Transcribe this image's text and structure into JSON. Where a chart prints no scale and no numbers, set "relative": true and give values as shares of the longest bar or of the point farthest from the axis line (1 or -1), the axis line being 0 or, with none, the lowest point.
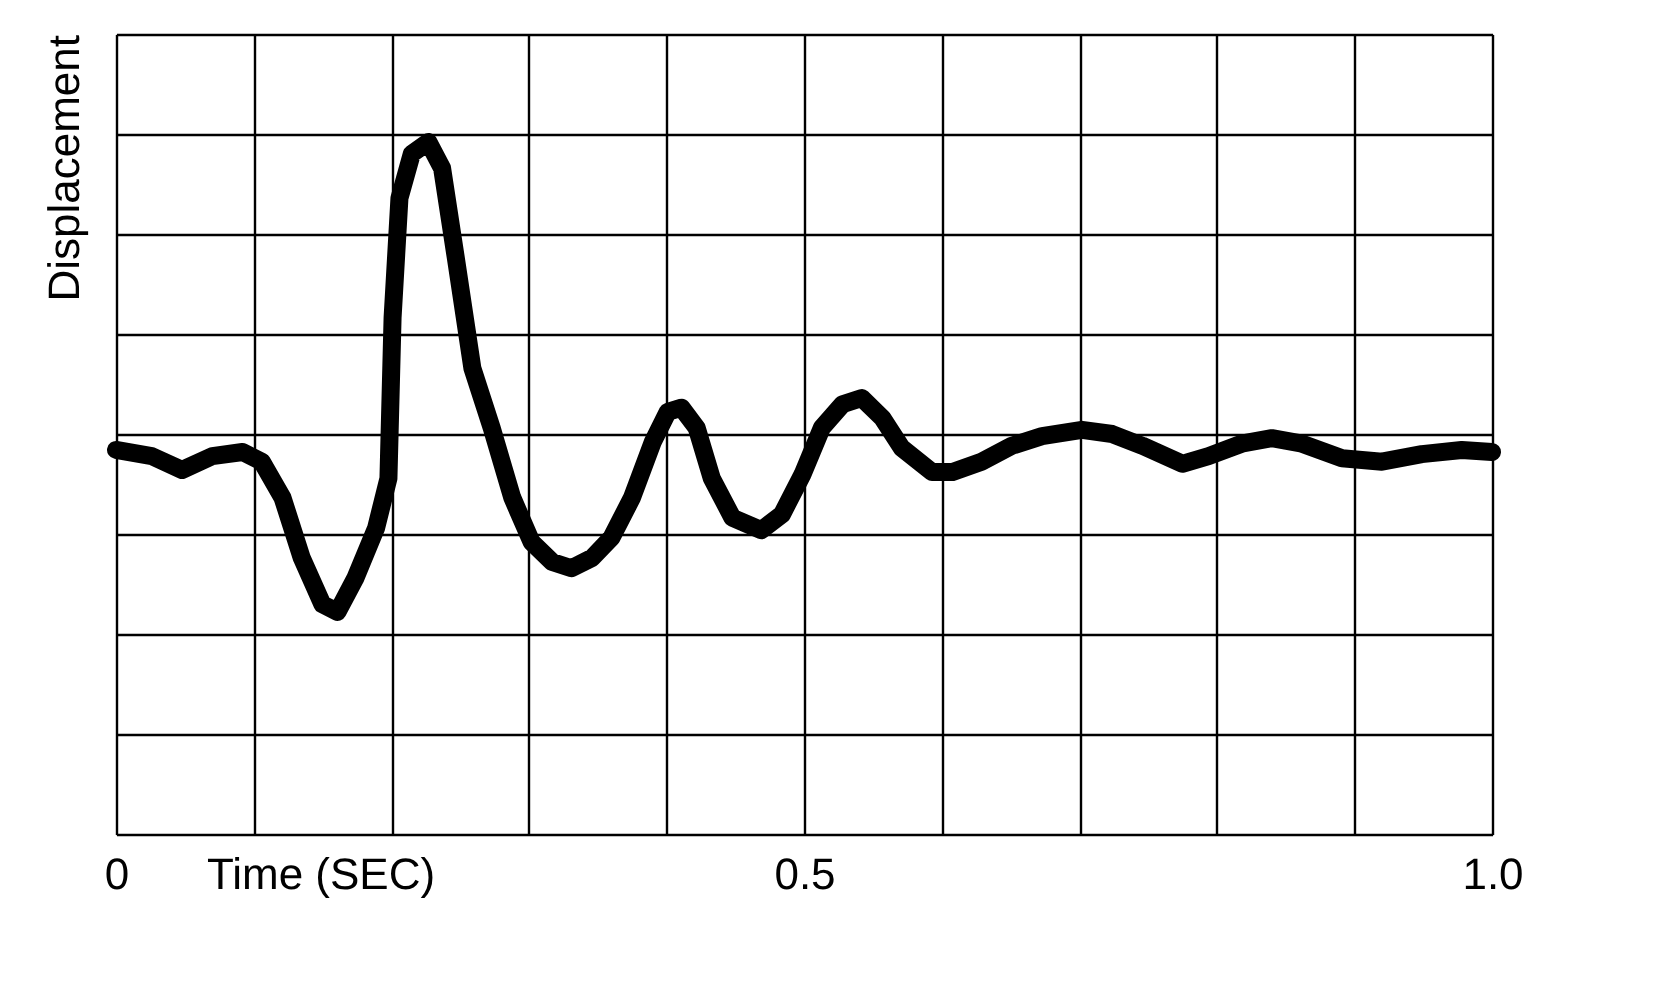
{
  "chart_data": {
    "type": "line",
    "xlabel": "Time (SEC)",
    "ylabel": "Displacement",
    "relative": true,
    "grid": true,
    "line_style": "solid",
    "xlim": [
      0,
      1.0
    ],
    "xticks": [
      0,
      {
        "value": 0.1,
        "label": null
      },
      {
        "value": 0.2,
        "label": null
      },
      {
        "value": 0.3,
        "label": null
      },
      {
        "value": 0.4,
        "label": null
      },
      0.5,
      {
        "value": 0.6,
        "label": null
      },
      {
        "value": 0.7,
        "label": null
      },
      {
        "value": 0.8,
        "label": null
      },
      {
        "value": 0.9,
        "label": null
      },
      {
        "value": 1.0,
        "label": "1.0"
      }
    ],
    "x": [
      0,
      0.026,
      0.048,
      0.07,
      0.092,
      0.106,
      0.121,
      0.135,
      0.15,
      0.161,
      0.174,
      0.189,
      0.198,
      0.201,
      0.206,
      0.215,
      0.227,
      0.237,
      0.247,
      0.259,
      0.273,
      0.288,
      0.302,
      0.317,
      0.331,
      0.346,
      0.36,
      0.375,
      0.39,
      0.401,
      0.411,
      0.422,
      0.433,
      0.448,
      0.469,
      0.484,
      0.499,
      0.513,
      0.528,
      0.542,
      0.557,
      0.571,
      0.593,
      0.608,
      0.629,
      0.651,
      0.673,
      0.702,
      0.724,
      0.746,
      0.775,
      0.794,
      0.818,
      0.84,
      0.862,
      0.891,
      0.92,
      0.949,
      0.978,
      1.0
    ],
    "series": [
      {
        "color": "#000000",
        "values": [
          0.555,
          0.546,
          0.526,
          0.546,
          0.552,
          0.538,
          0.486,
          0.399,
          0.332,
          0.321,
          0.37,
          0.442,
          0.514,
          0.746,
          0.919,
          0.983,
          1.0,
          0.962,
          0.832,
          0.673,
          0.587,
          0.486,
          0.422,
          0.393,
          0.384,
          0.399,
          0.428,
          0.486,
          0.566,
          0.61,
          0.616,
          0.587,
          0.514,
          0.457,
          0.439,
          0.462,
          0.52,
          0.587,
          0.621,
          0.63,
          0.601,
          0.558,
          0.523,
          0.523,
          0.538,
          0.561,
          0.575,
          0.584,
          0.578,
          0.561,
          0.535,
          0.546,
          0.564,
          0.572,
          0.564,
          0.543,
          0.538,
          0.549,
          0.555,
          0.552
        ]
      }
    ]
  }
}
